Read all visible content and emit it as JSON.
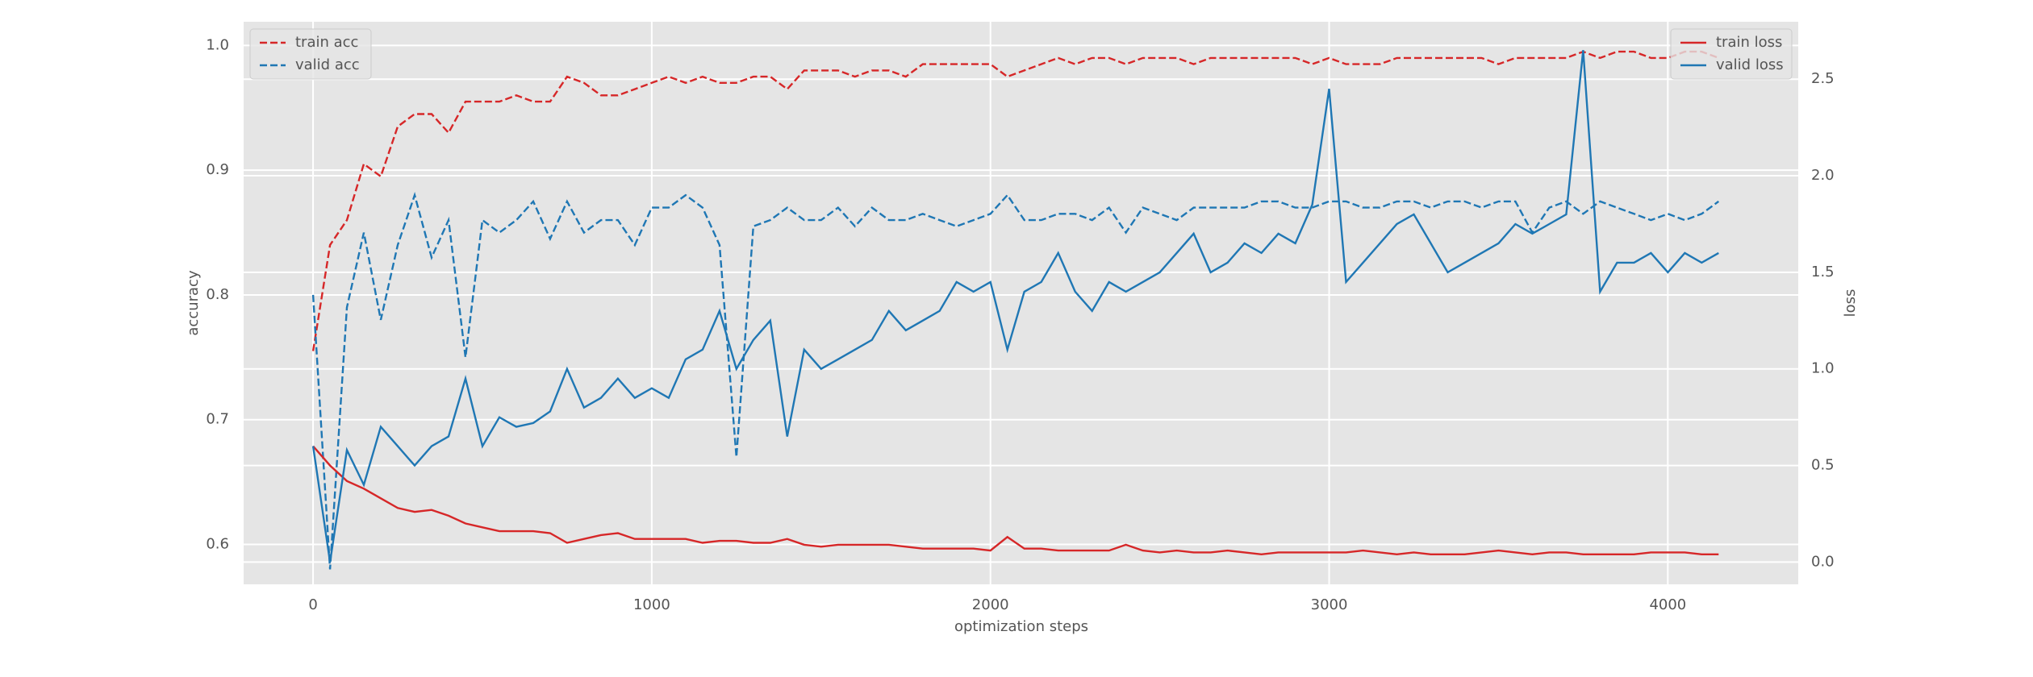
{
  "chart_data": {
    "type": "line",
    "xlabel": "optimization steps",
    "ylabel": "accuracy",
    "y2label": "loss",
    "x": [
      0,
      50,
      100,
      150,
      200,
      250,
      300,
      350,
      400,
      450,
      500,
      550,
      600,
      650,
      700,
      750,
      800,
      850,
      900,
      950,
      1000,
      1050,
      1100,
      1150,
      1200,
      1250,
      1300,
      1350,
      1400,
      1450,
      1500,
      1550,
      1600,
      1650,
      1700,
      1750,
      1800,
      1850,
      1900,
      1950,
      2000,
      2050,
      2100,
      2150,
      2200,
      2250,
      2300,
      2350,
      2400,
      2450,
      2500,
      2550,
      2600,
      2650,
      2700,
      2750,
      2800,
      2850,
      2900,
      2950,
      3000,
      3050,
      3100,
      3150,
      3200,
      3250,
      3300,
      3350,
      3400,
      3450,
      3500,
      3550,
      3600,
      3650,
      3700,
      3750,
      3800,
      3850,
      3900,
      3950,
      4000,
      4050,
      4100,
      4150
    ],
    "xlim": [
      -205,
      4385
    ],
    "xticks": [
      0,
      1000,
      2000,
      3000,
      4000
    ],
    "ylim": [
      0.568,
      1.019
    ],
    "yticks": [
      0.6,
      0.7,
      0.8,
      0.9,
      {
        "value": 1,
        "label": "1.0"
      }
    ],
    "y2lim": [
      -0.115,
      2.797
    ],
    "y2ticks": [
      {
        "value": 0,
        "label": "0.0"
      },
      0.5,
      {
        "value": 1,
        "label": "1.0"
      },
      1.5,
      {
        "value": 2,
        "label": "2.0"
      },
      2.5
    ],
    "grid": true,
    "legend": "upper left",
    "legend_y2": "upper right",
    "ycolor": "#d62728",
    "y2color": "#1f77b4",
    "series": [
      {
        "name": "train acc",
        "color": "#d62728",
        "linestyle": "dashed",
        "values": [
          0.755,
          0.84,
          0.86,
          0.905,
          0.895,
          0.935,
          0.945,
          0.945,
          0.93,
          0.955,
          0.955,
          0.955,
          0.96,
          0.955,
          0.955,
          0.975,
          0.97,
          0.96,
          0.96,
          0.965,
          0.97,
          0.975,
          0.97,
          0.975,
          0.97,
          0.97,
          0.975,
          0.975,
          0.965,
          0.98,
          0.98,
          0.98,
          0.975,
          0.98,
          0.98,
          0.975,
          0.985,
          0.985,
          0.985,
          0.985,
          0.985,
          0.975,
          0.98,
          0.985,
          0.99,
          0.985,
          0.99,
          0.99,
          0.985,
          0.99,
          0.99,
          0.99,
          0.985,
          0.99,
          0.99,
          0.99,
          0.99,
          0.99,
          0.99,
          0.985,
          0.99,
          0.985,
          0.985,
          0.985,
          0.99,
          0.99,
          0.99,
          0.99,
          0.99,
          0.99,
          0.985,
          0.99,
          0.99,
          0.99,
          0.99,
          0.995,
          0.99,
          0.995,
          0.995,
          0.99,
          0.99,
          0.995,
          0.995,
          0.99
        ]
      },
      {
        "name": "valid acc",
        "color": "#1f77b4",
        "linestyle": "dashed",
        "values": [
          0.8,
          0.58,
          0.79,
          0.85,
          0.78,
          0.84,
          0.88,
          0.83,
          0.86,
          0.75,
          0.86,
          0.85,
          0.86,
          0.875,
          0.845,
          0.875,
          0.85,
          0.86,
          0.86,
          0.84,
          0.87,
          0.87,
          0.88,
          0.87,
          0.84,
          0.67,
          0.855,
          0.86,
          0.87,
          0.86,
          0.86,
          0.87,
          0.855,
          0.87,
          0.86,
          0.86,
          0.865,
          0.86,
          0.855,
          0.86,
          0.865,
          0.88,
          0.86,
          0.86,
          0.865,
          0.865,
          0.86,
          0.87,
          0.85,
          0.87,
          0.865,
          0.86,
          0.87,
          0.87,
          0.87,
          0.87,
          0.875,
          0.875,
          0.87,
          0.87,
          0.875,
          0.875,
          0.87,
          0.87,
          0.875,
          0.875,
          0.87,
          0.875,
          0.875,
          0.87,
          0.875,
          0.875,
          0.85,
          0.87,
          0.875,
          0.865,
          0.875,
          0.87,
          0.865,
          0.86,
          0.865,
          0.86,
          0.865,
          0.875
        ]
      },
      {
        "name": "train loss",
        "color": "#d62728",
        "linestyle": "solid",
        "axis": "y2",
        "values": [
          0.6,
          0.5,
          0.42,
          0.38,
          0.33,
          0.28,
          0.26,
          0.27,
          0.24,
          0.2,
          0.18,
          0.16,
          0.16,
          0.16,
          0.15,
          0.1,
          0.12,
          0.14,
          0.15,
          0.12,
          0.12,
          0.12,
          0.12,
          0.1,
          0.11,
          0.11,
          0.1,
          0.1,
          0.12,
          0.09,
          0.08,
          0.09,
          0.09,
          0.09,
          0.09,
          0.08,
          0.07,
          0.07,
          0.07,
          0.07,
          0.06,
          0.13,
          0.07,
          0.07,
          0.06,
          0.06,
          0.06,
          0.06,
          0.09,
          0.06,
          0.05,
          0.06,
          0.05,
          0.05,
          0.06,
          0.05,
          0.04,
          0.05,
          0.05,
          0.05,
          0.05,
          0.05,
          0.06,
          0.05,
          0.04,
          0.05,
          0.04,
          0.04,
          0.04,
          0.05,
          0.06,
          0.05,
          0.04,
          0.05,
          0.05,
          0.04,
          0.04,
          0.04,
          0.04,
          0.05,
          0.05,
          0.05,
          0.04,
          0.04
        ]
      },
      {
        "name": "valid loss",
        "color": "#1f77b4",
        "linestyle": "solid",
        "axis": "y2",
        "values": [
          0.6,
          0.0,
          0.58,
          0.4,
          0.7,
          0.6,
          0.5,
          0.6,
          0.65,
          0.95,
          0.6,
          0.75,
          0.7,
          0.72,
          0.78,
          1.0,
          0.8,
          0.85,
          0.95,
          0.85,
          0.9,
          0.85,
          1.05,
          1.1,
          1.3,
          1.0,
          1.15,
          1.25,
          0.65,
          1.1,
          1.0,
          1.05,
          1.1,
          1.15,
          1.3,
          1.2,
          1.25,
          1.3,
          1.45,
          1.4,
          1.45,
          1.1,
          1.4,
          1.45,
          1.6,
          1.4,
          1.3,
          1.45,
          1.4,
          1.45,
          1.5,
          1.6,
          1.7,
          1.5,
          1.55,
          1.65,
          1.6,
          1.7,
          1.65,
          1.85,
          2.45,
          1.45,
          1.55,
          1.65,
          1.75,
          1.8,
          1.65,
          1.5,
          1.55,
          1.6,
          1.65,
          1.75,
          1.7,
          1.75,
          1.8,
          2.65,
          1.4,
          1.55,
          1.55,
          1.6,
          1.5,
          1.6,
          1.55,
          1.6
        ]
      }
    ]
  }
}
